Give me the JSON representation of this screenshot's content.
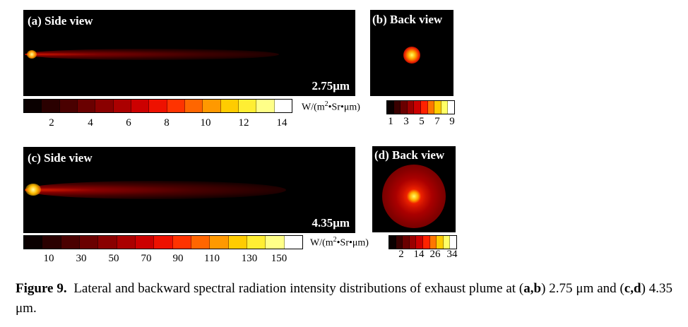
{
  "panels": {
    "a": {
      "label": "(a) Side view",
      "wavelength": "2.75μm"
    },
    "b": {
      "label": "(b) Back view"
    },
    "c": {
      "label": "(c) Side view",
      "wavelength": "4.35μm"
    },
    "d": {
      "label": "(d) Back view"
    }
  },
  "colorbars": {
    "top_side": {
      "ticks": [
        "2",
        "4",
        "6",
        "8",
        "10",
        "12",
        "14"
      ],
      "unit_prefix": "W/(m",
      "unit_sup": "2",
      "unit_suffix": "•Sr•μm)",
      "colors": [
        "#0a0000",
        "#2a0000",
        "#4a0000",
        "#6a0000",
        "#8a0000",
        "#ab0000",
        "#cc0000",
        "#ee1100",
        "#ff3300",
        "#ff6600",
        "#ff9900",
        "#ffcc00",
        "#ffee33",
        "#ffff88",
        "#ffffff"
      ]
    },
    "top_back": {
      "ticks": [
        "1",
        "3",
        "5",
        "7",
        "9"
      ],
      "colors": [
        "#0a0000",
        "#3a0000",
        "#6a0000",
        "#9a0000",
        "#cc0000",
        "#ff2200",
        "#ff7700",
        "#ffcc00",
        "#ffff66",
        "#ffffff"
      ]
    },
    "bottom_side": {
      "ticks": [
        "10",
        "30",
        "50",
        "70",
        "90",
        "110",
        "130",
        "150"
      ],
      "unit_prefix": "W/(m",
      "unit_sup": "2",
      "unit_suffix": "•Sr•μm)",
      "colors": [
        "#0a0000",
        "#2a0000",
        "#4a0000",
        "#6a0000",
        "#8a0000",
        "#ab0000",
        "#cc0000",
        "#ee1100",
        "#ff3300",
        "#ff6600",
        "#ff9900",
        "#ffcc00",
        "#ffee33",
        "#ffff88",
        "#ffffff"
      ]
    },
    "bottom_back": {
      "ticks": [
        "2",
        "14",
        "26",
        "34"
      ],
      "colors": [
        "#0a0000",
        "#3a0000",
        "#6a0000",
        "#9a0000",
        "#cc0000",
        "#ff2200",
        "#ff7700",
        "#ffcc00",
        "#ffff66",
        "#ffffff"
      ]
    }
  },
  "caption": {
    "figure_label": "Figure 9.",
    "text_1": "Lateral and backward spectral radiation intensity distributions of exhaust plume at (",
    "ab": "a,b",
    "text_2": ") 2.75 μm and (",
    "cd": "c,d",
    "text_3": ") 4.35 μm."
  }
}
